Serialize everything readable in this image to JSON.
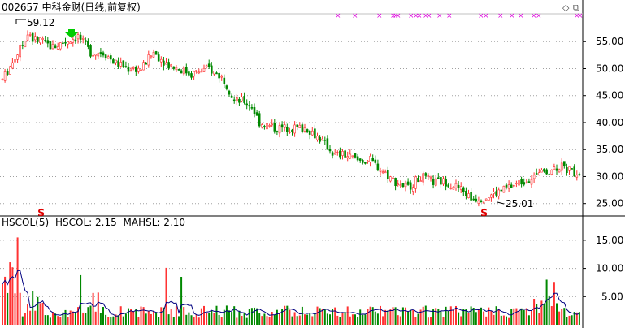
{
  "header": {
    "title": "002657 中科金财(日线,前复权)"
  },
  "window_controls": {
    "diamond_label": "◇",
    "restore_label": "⧉"
  },
  "indicator": {
    "name": "HSCOL(5)",
    "hscol": "HSCOL: 2.15",
    "mahsl": "MAHSL: 2.10"
  },
  "annotations": {
    "high_label": "59.12",
    "low_label": "25.01",
    "dollar_mark": "$"
  },
  "colors": {
    "up": "#ff3333",
    "down": "#008800",
    "ma_line": "#000080",
    "magenta": "#e000e0",
    "arrow": "#00cc00",
    "grid": "#a0a0a0"
  },
  "chart_data": [
    {
      "type": "candlestick",
      "title": "002657 中科金财(日线,前复权)",
      "y_ticks": [
        25,
        30,
        35,
        40,
        45,
        50,
        55
      ],
      "ylim": [
        23,
        60
      ],
      "grid": true,
      "high_marker": 59.12,
      "low_marker": 25.01,
      "key_points": [
        [
          0,
          48
        ],
        [
          10,
          56
        ],
        [
          20,
          54
        ],
        [
          30,
          56
        ],
        [
          35,
          53
        ],
        [
          40,
          53
        ],
        [
          45,
          51
        ],
        [
          50,
          50
        ],
        [
          55,
          50
        ],
        [
          60,
          53
        ],
        [
          65,
          51
        ],
        [
          70,
          50
        ],
        [
          75,
          49
        ],
        [
          82,
          50
        ],
        [
          88,
          48
        ],
        [
          92,
          44
        ],
        [
          96,
          44
        ],
        [
          99,
          43
        ],
        [
          102,
          40
        ],
        [
          108,
          39
        ],
        [
          115,
          39
        ],
        [
          121,
          39
        ],
        [
          126,
          37
        ],
        [
          132,
          34
        ],
        [
          136,
          34
        ],
        [
          141,
          33
        ],
        [
          146,
          33
        ],
        [
          151,
          31
        ],
        [
          156,
          29
        ],
        [
          161,
          28
        ],
        [
          166,
          30
        ],
        [
          171,
          29
        ],
        [
          176,
          29
        ],
        [
          181,
          28
        ],
        [
          186,
          26
        ],
        [
          191,
          26
        ],
        [
          196,
          27
        ],
        [
          201,
          28
        ],
        [
          206,
          29
        ],
        [
          211,
          30
        ],
        [
          216,
          31
        ],
        [
          221,
          32
        ],
        [
          226,
          31
        ],
        [
          230,
          30.5
        ]
      ]
    },
    {
      "type": "bar",
      "title": "HSCOL(5)",
      "y_ticks": [
        5,
        10,
        15
      ],
      "ylim": [
        0,
        17
      ],
      "series": [
        {
          "name": "HSCOL",
          "last": 2.15
        },
        {
          "name": "MAHSL",
          "last": 2.1
        }
      ]
    }
  ]
}
